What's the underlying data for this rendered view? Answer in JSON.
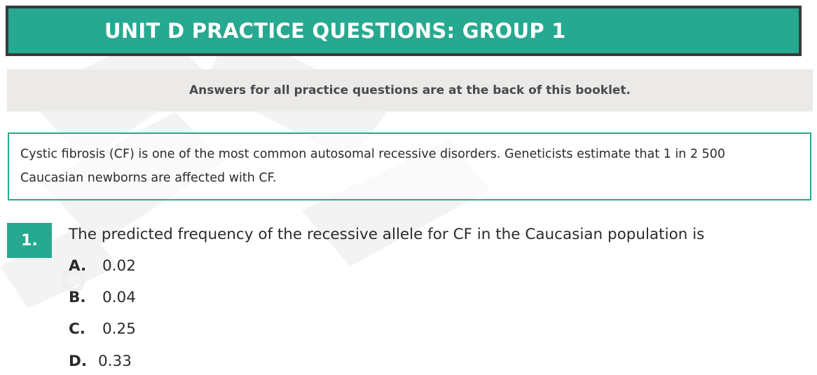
{
  "header": {
    "title": "UNIT D PRACTICE QUESTIONS: GROUP 1",
    "note": "Answers for all practice questions are at the back of this booklet."
  },
  "context": {
    "line1": "Cystic fibrosis (CF) is one of the most common autosomal recessive disorders.  Geneticists estimate that 1 in 2 500",
    "line2": "Caucasian newborns are affected with CF."
  },
  "question": {
    "number": "1.",
    "stem": "The predicted frequency of the recessive allele for CF in the Caucasian population is",
    "options": [
      {
        "letter": "A.",
        "value": "0.02"
      },
      {
        "letter": "B.",
        "value": "0.04"
      },
      {
        "letter": "C.",
        "value": "0.25"
      },
      {
        "letter": "D.",
        "value": "0.33"
      }
    ]
  },
  "colors": {
    "accent": "#26a990",
    "header_border": "#3a3a3a",
    "note_background": "#ebeae8"
  }
}
